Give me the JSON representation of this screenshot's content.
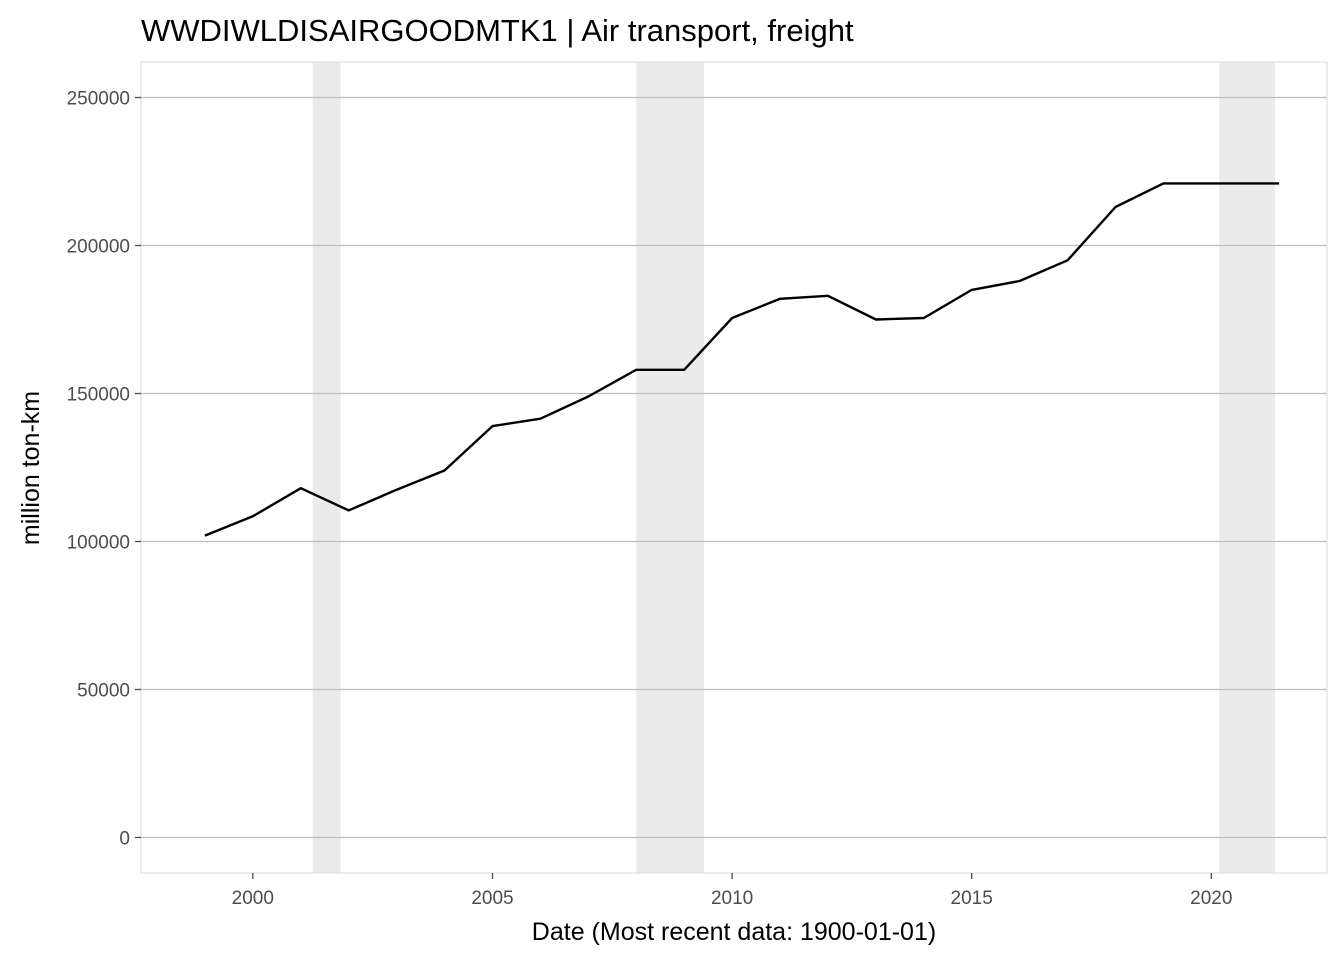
{
  "chart_data": {
    "type": "line",
    "title": "WWDIWLDISAIRGOODMTK1 | Air transport, freight",
    "xlabel": "Date (Most recent data: 1900-01-01)",
    "ylabel": "million ton-km",
    "xlim": [
      "1997-09-01",
      "2022-06-01"
    ],
    "ylim": [
      -12000,
      262000
    ],
    "x_ticks": [
      "2000-01-01",
      "2005-01-01",
      "2010-01-01",
      "2015-01-01",
      "2020-01-01"
    ],
    "x_tick_labels": [
      "2000",
      "2005",
      "2010",
      "2015",
      "2020"
    ],
    "y_ticks": [
      0,
      50000,
      100000,
      150000,
      200000,
      250000
    ],
    "y_tick_labels": [
      "0",
      "50000",
      "100000",
      "150000",
      "200000",
      "250000"
    ],
    "grid": "horizontal",
    "legend": "none",
    "recessions": [
      {
        "start": "2001-04-01",
        "end": "2001-11-01"
      },
      {
        "start": "2008-01-01",
        "end": "2009-06-01"
      },
      {
        "start": "2020-03-01",
        "end": "2021-04-30"
      }
    ],
    "series": [
      {
        "x": [
          "1999-01-01",
          "2000-01-01",
          "2001-01-01",
          "2002-01-01",
          "2003-01-01",
          "2004-01-01",
          "2005-01-01",
          "2006-01-01",
          "2007-01-01",
          "2008-01-01",
          "2009-01-01",
          "2010-01-01",
          "2011-01-01",
          "2012-01-01",
          "2013-01-01",
          "2014-01-01",
          "2015-01-01",
          "2016-01-01",
          "2017-01-01",
          "2018-01-01",
          "2019-01-01",
          "2020-01-01",
          "2021-01-01",
          "2021-06-01"
        ],
        "values": [
          102000,
          108500,
          118000,
          110500,
          117500,
          124000,
          139000,
          141500,
          149000,
          158000,
          158000,
          175500,
          182000,
          183000,
          175000,
          175500,
          185000,
          188000,
          195000,
          213000,
          221000,
          221000,
          221000,
          221000
        ]
      }
    ],
    "colors": {
      "line": "#000000",
      "recession": "#ebebeb",
      "grid": "#bdbdbd",
      "panel_border": "#d9d9d9",
      "tick": "#4d4d4d"
    }
  }
}
